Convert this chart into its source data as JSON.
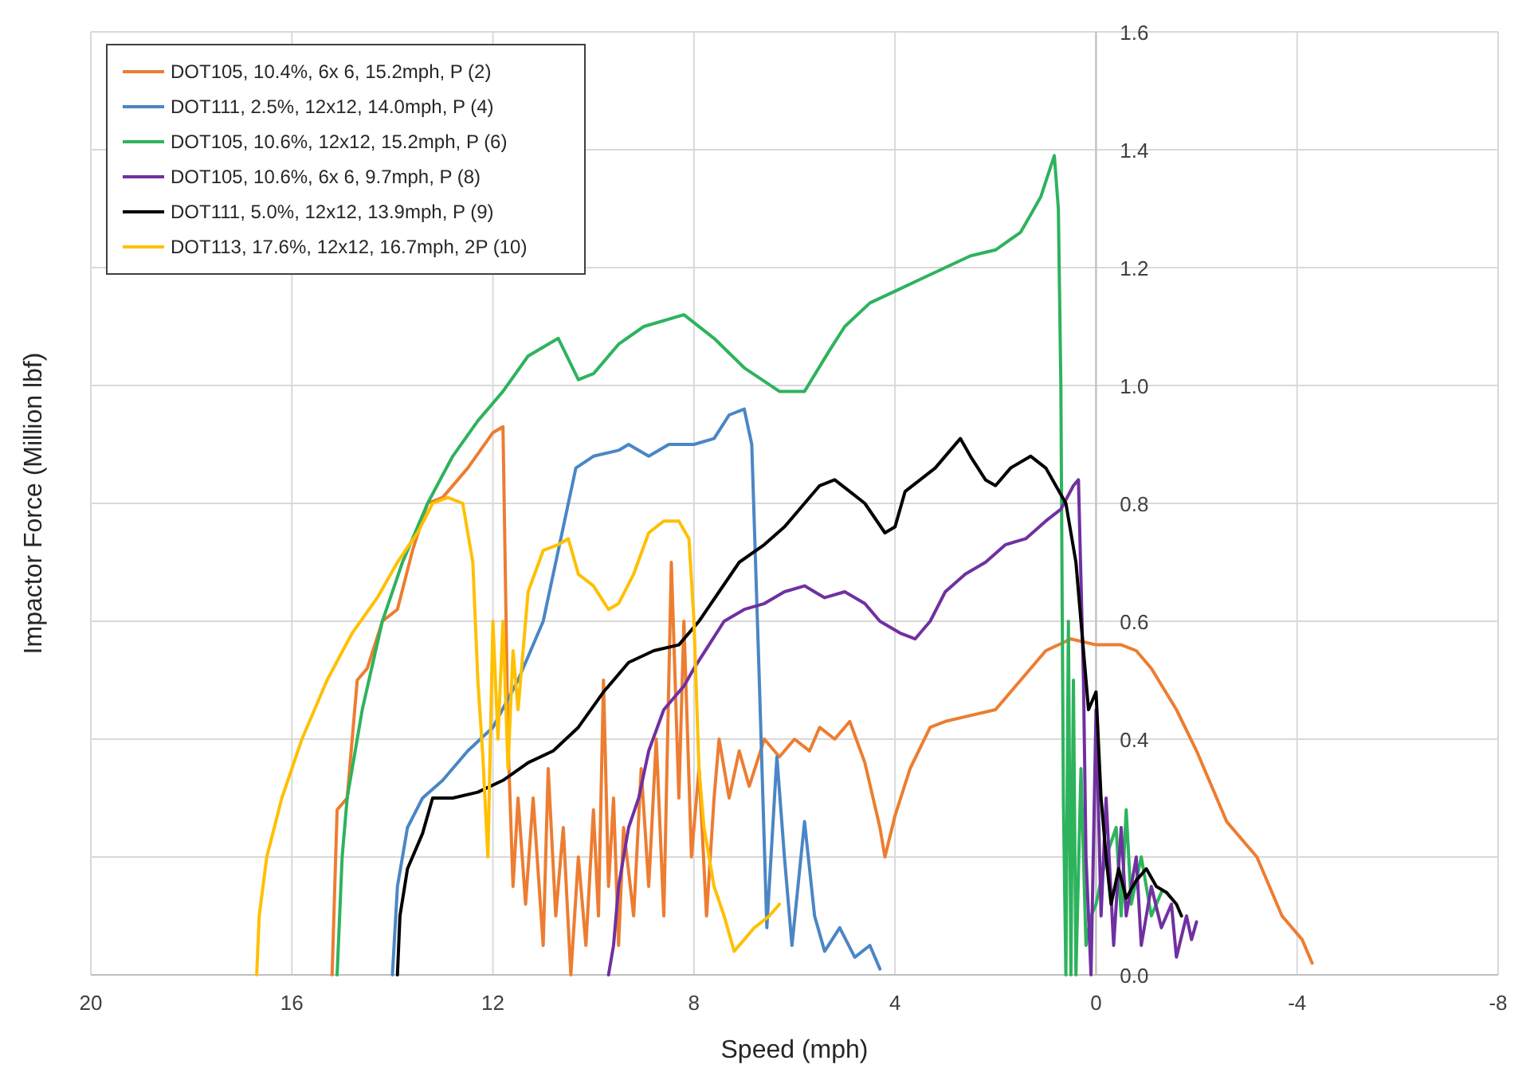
{
  "chart_data": {
    "type": "line",
    "xlabel": "Speed (mph)",
    "ylabel": "Impactor Force (Million lbf)",
    "xlim": [
      20,
      -8
    ],
    "xticks": [
      20,
      16,
      12,
      8,
      4,
      0,
      -4,
      -8
    ],
    "ylim": [
      0,
      1.6
    ],
    "yticks": [
      {
        "value": 0,
        "label": "0.0"
      },
      {
        "value": 0.2,
        "label": null
      },
      0.4,
      0.6,
      0.8,
      {
        "value": 1,
        "label": "1.0"
      },
      1.2,
      1.4,
      1.6
    ],
    "grid": true,
    "legend": "top left",
    "line_style": "solid",
    "series": [
      {
        "name": "DOT105, 10.4%, 6x 6, 15.2mph, P (2)",
        "color": "#ed7d31",
        "x": [
          15.2,
          15.1,
          14.9,
          14.7,
          14.5,
          14.2,
          13.9,
          13.6,
          13.3,
          13,
          12.5,
          12,
          11.8,
          11.7,
          11.6,
          11.5,
          11.35,
          11.2,
          11,
          10.9,
          10.75,
          10.6,
          10.45,
          10.3,
          10.15,
          10,
          9.9,
          9.8,
          9.7,
          9.6,
          9.5,
          9.4,
          9.2,
          9.05,
          8.9,
          8.75,
          8.6,
          8.45,
          8.3,
          8.2,
          8.05,
          7.9,
          7.75,
          7.6,
          7.5,
          7.3,
          7.1,
          6.9,
          6.6,
          6.3,
          6,
          5.7,
          5.5,
          5.2,
          4.9,
          4.6,
          4.3,
          4.2,
          4,
          3.7,
          3.3,
          3,
          2.5,
          2,
          1.5,
          1,
          0.5,
          0,
          -0.5,
          -0.8,
          -1.1,
          -1.6,
          -2,
          -2.6,
          -3.2,
          -3.7,
          -4.1,
          -4.3
        ],
        "values": [
          0,
          0.28,
          0.3,
          0.5,
          0.52,
          0.6,
          0.62,
          0.72,
          0.8,
          0.81,
          0.86,
          0.92,
          0.93,
          0.4,
          0.15,
          0.3,
          0.12,
          0.3,
          0.05,
          0.35,
          0.1,
          0.25,
          0,
          0.2,
          0.05,
          0.28,
          0.1,
          0.5,
          0.15,
          0.3,
          0.05,
          0.25,
          0.1,
          0.35,
          0.15,
          0.4,
          0.1,
          0.7,
          0.3,
          0.6,
          0.2,
          0.35,
          0.1,
          0.3,
          0.4,
          0.3,
          0.38,
          0.32,
          0.4,
          0.37,
          0.4,
          0.38,
          0.42,
          0.4,
          0.43,
          0.36,
          0.25,
          0.2,
          0.27,
          0.35,
          0.42,
          0.43,
          0.44,
          0.45,
          0.5,
          0.55,
          0.57,
          0.56,
          0.56,
          0.55,
          0.52,
          0.45,
          0.38,
          0.26,
          0.2,
          0.1,
          0.06,
          0.02
        ]
      },
      {
        "name": "DOT111, 2.5%, 12x12, 14.0mph, P (4)",
        "color": "#4a86c5",
        "x": [
          14,
          13.9,
          13.7,
          13.4,
          13,
          12.5,
          12,
          11.5,
          11,
          10.35,
          10,
          9.5,
          9.3,
          8.9,
          8.5,
          8,
          7.6,
          7.3,
          7,
          6.85,
          6.7,
          6.55,
          6.35,
          6.2,
          6.05,
          5.8,
          5.6,
          5.4,
          5.1,
          4.8,
          4.5,
          4.3
        ],
        "values": [
          0,
          0.15,
          0.25,
          0.3,
          0.33,
          0.38,
          0.42,
          0.5,
          0.6,
          0.86,
          0.88,
          0.89,
          0.9,
          0.88,
          0.9,
          0.9,
          0.91,
          0.95,
          0.96,
          0.9,
          0.5,
          0.08,
          0.37,
          0.2,
          0.05,
          0.26,
          0.1,
          0.04,
          0.08,
          0.03,
          0.05,
          0.01
        ]
      },
      {
        "name": "DOT105, 10.6%, 12x12, 15.2mph, P (6)",
        "color": "#2db35d",
        "x": [
          15.1,
          15,
          14.9,
          14.6,
          14.2,
          13.8,
          13.3,
          12.8,
          12.3,
          11.8,
          11.3,
          10.7,
          10.3,
          10,
          9.5,
          9,
          8.2,
          7.6,
          7,
          6.3,
          5.8,
          5.3,
          5,
          4.5,
          4,
          3.5,
          3,
          2.5,
          2,
          1.5,
          1.3,
          1.1,
          0.83,
          0.75,
          0.7,
          0.65,
          0.6,
          0.55,
          0.5,
          0.45,
          0.4,
          0.3,
          0.2,
          0.1,
          0,
          -0.2,
          -0.4,
          -0.5,
          -0.6,
          -0.7,
          -0.9,
          -1.1,
          -1.3
        ],
        "values": [
          0,
          0.2,
          0.3,
          0.45,
          0.6,
          0.7,
          0.8,
          0.88,
          0.94,
          0.99,
          1.05,
          1.08,
          1.01,
          1.02,
          1.07,
          1.1,
          1.12,
          1.08,
          1.03,
          0.99,
          0.99,
          1.06,
          1.1,
          1.14,
          1.16,
          1.18,
          1.2,
          1.22,
          1.23,
          1.26,
          1.29,
          1.32,
          1.39,
          1.3,
          1,
          0.3,
          0,
          0.6,
          0,
          0.5,
          0,
          0.35,
          0.05,
          0.1,
          0.12,
          0.2,
          0.25,
          0.1,
          0.28,
          0.12,
          0.2,
          0.1,
          0.14
        ]
      },
      {
        "name": "DOT105, 10.6%, 6x 6, 9.7mph, P (8)",
        "color": "#7030a0",
        "x": [
          9.7,
          9.6,
          9.5,
          9.3,
          9.1,
          8.9,
          8.6,
          8.2,
          8,
          7.7,
          7.4,
          7,
          6.6,
          6.2,
          5.8,
          5.4,
          5,
          4.6,
          4.3,
          3.9,
          3.6,
          3.3,
          3,
          2.6,
          2.2,
          1.8,
          1.4,
          1,
          0.7,
          0.45,
          0.35,
          0.25,
          0.2,
          0.1,
          0,
          -0.1,
          -0.2,
          -0.35,
          -0.5,
          -0.6,
          -0.8,
          -0.9,
          -1.1,
          -1.3,
          -1.5,
          -1.6,
          -1.8,
          -1.9,
          -2
        ],
        "values": [
          0,
          0.05,
          0.15,
          0.25,
          0.3,
          0.38,
          0.45,
          0.49,
          0.52,
          0.56,
          0.6,
          0.62,
          0.63,
          0.65,
          0.66,
          0.64,
          0.65,
          0.63,
          0.6,
          0.58,
          0.57,
          0.6,
          0.65,
          0.68,
          0.7,
          0.73,
          0.74,
          0.77,
          0.79,
          0.83,
          0.84,
          0.5,
          0.2,
          0,
          0.45,
          0.1,
          0.3,
          0.05,
          0.25,
          0.1,
          0.2,
          0.05,
          0.15,
          0.08,
          0.12,
          0.03,
          0.1,
          0.06,
          0.09
        ]
      },
      {
        "name": "DOT111, 5.0%, 12x12, 13.9mph, P (9)",
        "color": "#000000",
        "x": [
          13.9,
          13.85,
          13.7,
          13.4,
          13.2,
          12.8,
          12.3,
          11.8,
          11.3,
          10.8,
          10.3,
          9.8,
          9.3,
          8.8,
          8.3,
          7.9,
          7.5,
          7.1,
          6.6,
          6.2,
          5.8,
          5.5,
          5.2,
          4.9,
          4.6,
          4.2,
          4,
          3.8,
          3.5,
          3.2,
          2.7,
          2.5,
          2.2,
          2,
          1.7,
          1.3,
          1,
          0.6,
          0.4,
          0.25,
          0.15,
          0,
          -0.1,
          -0.2,
          -0.3,
          -0.45,
          -0.6,
          -0.8,
          -1,
          -1.2,
          -1.4,
          -1.6,
          -1.7
        ],
        "values": [
          0,
          0.1,
          0.18,
          0.24,
          0.3,
          0.3,
          0.31,
          0.33,
          0.36,
          0.38,
          0.42,
          0.48,
          0.53,
          0.55,
          0.56,
          0.6,
          0.65,
          0.7,
          0.73,
          0.76,
          0.8,
          0.83,
          0.84,
          0.82,
          0.8,
          0.75,
          0.76,
          0.82,
          0.84,
          0.86,
          0.91,
          0.88,
          0.84,
          0.83,
          0.86,
          0.88,
          0.86,
          0.8,
          0.7,
          0.55,
          0.45,
          0.48,
          0.3,
          0.2,
          0.12,
          0.18,
          0.13,
          0.16,
          0.18,
          0.15,
          0.14,
          0.12,
          0.1
        ]
      },
      {
        "name": "DOT113, 17.6%, 12x12, 16.7mph, 2P (10)",
        "color": "#ffc000",
        "x": [
          16.7,
          16.65,
          16.5,
          16.2,
          15.8,
          15.3,
          14.8,
          14.3,
          13.9,
          13.5,
          13.2,
          12.9,
          12.6,
          12.4,
          12.3,
          12.2,
          12.1,
          12,
          11.9,
          11.8,
          11.7,
          11.6,
          11.5,
          11.3,
          11,
          10.7,
          10.5,
          10.3,
          10,
          9.7,
          9.5,
          9.2,
          8.9,
          8.6,
          8.3,
          8.1,
          8,
          7.9,
          7.8,
          7.6,
          7.4,
          7.2,
          7,
          6.8,
          6.5,
          6.3
        ],
        "values": [
          0,
          0.1,
          0.2,
          0.3,
          0.4,
          0.5,
          0.58,
          0.64,
          0.7,
          0.75,
          0.8,
          0.81,
          0.8,
          0.7,
          0.5,
          0.37,
          0.2,
          0.6,
          0.4,
          0.6,
          0.35,
          0.55,
          0.45,
          0.65,
          0.72,
          0.73,
          0.74,
          0.68,
          0.66,
          0.62,
          0.63,
          0.68,
          0.75,
          0.77,
          0.77,
          0.74,
          0.6,
          0.35,
          0.25,
          0.15,
          0.1,
          0.04,
          0.06,
          0.08,
          0.1,
          0.12
        ]
      }
    ]
  }
}
